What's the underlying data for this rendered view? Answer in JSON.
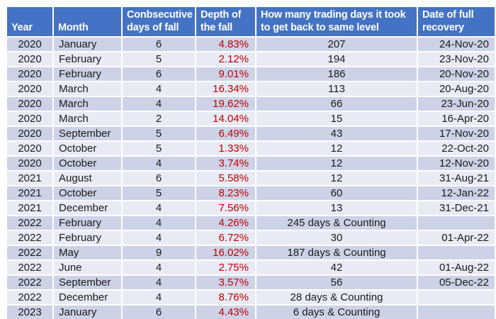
{
  "colors": {
    "header_bg": "#4472C4",
    "header_text": "#FFFFFF",
    "row_odd_bg": "#CDD2E7",
    "row_even_bg": "#E9EBF4",
    "body_text": "#1A1A1A",
    "depth_text": "#C00000"
  },
  "chart_data": {
    "type": "table",
    "title": "",
    "columns": [
      {
        "id": "year",
        "label": "Year"
      },
      {
        "id": "month",
        "label": "Month"
      },
      {
        "id": "days",
        "label": "Conbsecutive\ndays of fall"
      },
      {
        "id": "depth",
        "label": "Depth of\nthe fall"
      },
      {
        "id": "trading",
        "label": "How many trading days it took\nto get back to same level"
      },
      {
        "id": "date",
        "label": "Date of full\nrecovery"
      }
    ],
    "rows": [
      [
        "2020",
        "January",
        "6",
        "4.83%",
        "207",
        "24-Nov-20"
      ],
      [
        "2020",
        "February",
        "5",
        "2.12%",
        "194",
        "23-Nov-20"
      ],
      [
        "2020",
        "February",
        "6",
        "9.01%",
        "186",
        "20-Nov-20"
      ],
      [
        "2020",
        "March",
        "4",
        "16.34%",
        "113",
        "20-Aug-20"
      ],
      [
        "2020",
        "March",
        "4",
        "19.62%",
        "66",
        "23-Jun-20"
      ],
      [
        "2020",
        "March",
        "2",
        "14.04%",
        "15",
        "16-Apr-20"
      ],
      [
        "2020",
        "September",
        "5",
        "6.49%",
        "43",
        "17-Nov-20"
      ],
      [
        "2020",
        "October",
        "5",
        "1.33%",
        "12",
        "22-Oct-20"
      ],
      [
        "2020",
        "October",
        "4",
        "3.74%",
        "12",
        "12-Nov-20"
      ],
      [
        "2021",
        "August",
        "6",
        "5.58%",
        "12",
        "31-Aug-21"
      ],
      [
        "2021",
        "October",
        "5",
        "8.23%",
        "60",
        "12-Jan-22"
      ],
      [
        "2021",
        "December",
        "4",
        "7.56%",
        "13",
        "31-Dec-21"
      ],
      [
        "2022",
        "February",
        "4",
        "4.26%",
        "245 days & Counting",
        ""
      ],
      [
        "2022",
        "February",
        "4",
        "6.72%",
        "30",
        "01-Apr-22"
      ],
      [
        "2022",
        "May",
        "9",
        "16.02%",
        "187 days & Counting",
        ""
      ],
      [
        "2022",
        "June",
        "4",
        "2.75%",
        "42",
        "01-Aug-22"
      ],
      [
        "2022",
        "September",
        "4",
        "3.57%",
        "56",
        "05-Dec-22"
      ],
      [
        "2022",
        "December",
        "4",
        "8.76%",
        "28 days & Counting",
        ""
      ],
      [
        "2023",
        "January",
        "6",
        "4.43%",
        "6 days & Counting",
        ""
      ]
    ]
  }
}
